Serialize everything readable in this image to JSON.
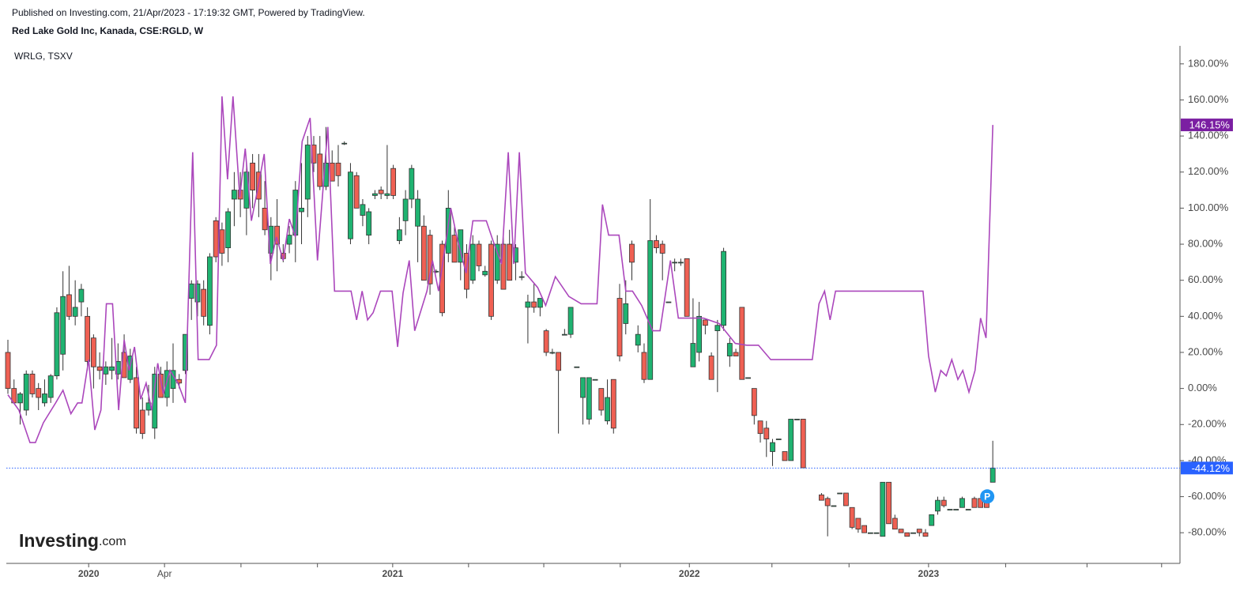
{
  "chart_data": {
    "type": "candlestick",
    "published": "Published on Investing.com, 21/Apr/2023 - 17:19:32 GMT, Powered by TradingView.",
    "title": "Red Lake Gold Inc, Kanada, CSE:RGLD, W",
    "branding": {
      "main": "Investing",
      "suffix": ".com"
    },
    "annotation": "P",
    "ylim": [
      -97,
      190
    ],
    "xlim": [
      -0.26,
      191.6
    ],
    "yticks": [
      {
        "value": -80,
        "label": "-80.00%"
      },
      {
        "value": -60,
        "label": "-60.00%"
      },
      {
        "value": -40,
        "label": "-40.00%"
      },
      {
        "value": -20,
        "label": "-20.00%"
      },
      {
        "value": 0,
        "label": "0.00%"
      },
      {
        "value": 20,
        "label": "20.00%"
      },
      {
        "value": 40,
        "label": "40.00%"
      },
      {
        "value": 60,
        "label": "60.00%"
      },
      {
        "value": 80,
        "label": "80.00%"
      },
      {
        "value": 100,
        "label": "100.00%"
      },
      {
        "value": 120,
        "label": "120.00%"
      },
      {
        "value": 140,
        "label": "140.00%"
      },
      {
        "value": 160,
        "label": "160.00%"
      },
      {
        "value": 180,
        "label": "180.00%"
      }
    ],
    "xticks": [
      {
        "value": 13.2,
        "label": "2020"
      },
      {
        "value": 25.6,
        "label": "Apr"
      },
      {
        "value": 38.1,
        "label": null
      },
      {
        "value": 50.6,
        "label": null
      },
      {
        "value": 62.9,
        "label": "2021"
      },
      {
        "value": 75.3,
        "label": null
      },
      {
        "value": 87.6,
        "label": null
      },
      {
        "value": 100.1,
        "label": null
      },
      {
        "value": 111.4,
        "label": "2022"
      },
      {
        "value": 124.9,
        "label": null
      },
      {
        "value": 137.5,
        "label": null
      },
      {
        "value": 150.5,
        "label": "2023"
      },
      {
        "value": 163.1,
        "label": null
      },
      {
        "value": 176.4,
        "label": null
      },
      {
        "value": 188.6,
        "label": null
      }
    ],
    "price_marker": {
      "value": -44.12,
      "label": "-44.12%",
      "color": "#2962ff"
    },
    "compare_marker": {
      "value": 146.15,
      "label": "146.15%",
      "color": "#7b1fa2"
    },
    "series": [
      {
        "type": "candlestick",
        "up_color": "#1fb371",
        "down_color": "#ef6053",
        "x": [
          0,
          1,
          2,
          3,
          4,
          5,
          6,
          7,
          8,
          9,
          10,
          11,
          12,
          13,
          14,
          15,
          16,
          17,
          18,
          19,
          20,
          21,
          22,
          23,
          24,
          25,
          26,
          27,
          28,
          29,
          30,
          31,
          32,
          33,
          34,
          35,
          36,
          37,
          38,
          39,
          40,
          41,
          42,
          43,
          44,
          45,
          46,
          47,
          48,
          49,
          50,
          51,
          52,
          53,
          54,
          55,
          56,
          57,
          58,
          59,
          60,
          61,
          62,
          63,
          64,
          65,
          66,
          67,
          68,
          69,
          70,
          71,
          72,
          73,
          74,
          75,
          76,
          77,
          78,
          79,
          80,
          81,
          82,
          83,
          84,
          85,
          86,
          87,
          88,
          89,
          90,
          91,
          92,
          93,
          94,
          95,
          96,
          97,
          98,
          99,
          100,
          101,
          102,
          103,
          104,
          105,
          106,
          107,
          108,
          109,
          110,
          111,
          112,
          113,
          114,
          115,
          116,
          117,
          118,
          119,
          120,
          121,
          122,
          123,
          124,
          125,
          126,
          127,
          128,
          129,
          130,
          133,
          134,
          135,
          136,
          137,
          138,
          139,
          140,
          141,
          142,
          143,
          144,
          145,
          146,
          147,
          148,
          149,
          150,
          151,
          152,
          153,
          154,
          155,
          156,
          157,
          158,
          159,
          160,
          161
        ],
        "open": [
          20,
          0,
          -8,
          -12,
          8,
          0,
          -8,
          -5,
          7,
          19,
          52,
          40,
          48,
          40,
          28,
          12,
          8,
          10,
          8,
          20,
          5,
          6,
          -12,
          -12,
          -22,
          8,
          -5,
          0,
          5,
          10,
          50,
          48,
          55,
          35,
          93,
          88,
          78,
          105,
          110,
          100,
          125,
          120,
          100,
          75,
          90,
          75,
          80,
          85,
          98,
          105,
          135,
          130,
          112,
          125,
          125,
          136,
          83,
          118,
          96,
          85,
          107,
          110,
          107,
          122,
          82,
          93,
          105,
          90,
          90,
          85,
          65,
          80,
          75,
          85,
          70,
          75,
          60,
          80,
          63,
          80,
          60,
          80,
          80,
          70,
          62,
          45,
          48,
          45,
          32,
          20,
          20,
          30,
          30,
          12,
          -5,
          -17,
          5,
          0,
          -18,
          5,
          50,
          36,
          80,
          24,
          20,
          5,
          82,
          80,
          48,
          70,
          70,
          72,
          12,
          20,
          38,
          18,
          32,
          35,
          18,
          20,
          45,
          6,
          0,
          -18,
          -22,
          -35,
          -28,
          -35,
          -40,
          -17,
          -17,
          -59,
          -61,
          -65,
          -58,
          -58,
          -66,
          -72,
          -76,
          -80,
          -80,
          -82,
          -52,
          -72,
          -78,
          -80,
          -80,
          -78,
          -80,
          -76,
          -68,
          -62,
          -67,
          -67,
          -66,
          -67,
          -61,
          -61,
          -61,
          -52
        ],
        "high": [
          27,
          5,
          -2,
          10,
          10,
          3,
          5,
          8,
          45,
          65,
          68,
          60,
          58,
          45,
          30,
          20,
          15,
          28,
          25,
          30,
          22,
          12,
          -5,
          2,
          12,
          12,
          15,
          25,
          8,
          30,
          60,
          60,
          60,
          75,
          95,
          92,
          100,
          120,
          120,
          125,
          130,
          130,
          115,
          95,
          105,
          80,
          90,
          115,
          125,
          140,
          140,
          140,
          145,
          132,
          135,
          137,
          125,
          120,
          105,
          100,
          110,
          112,
          135,
          124,
          95,
          110,
          124,
          110,
          96,
          88,
          66,
          82,
          110,
          90,
          88,
          80,
          85,
          82,
          68,
          82,
          85,
          85,
          88,
          80,
          65,
          52,
          58,
          50,
          33,
          22,
          20,
          33,
          45,
          12,
          6,
          6,
          5,
          0,
          5,
          5,
          58,
          60,
          82,
          35,
          25,
          105,
          85,
          82,
          48,
          72,
          72,
          72,
          50,
          48,
          38,
          20,
          38,
          78,
          28,
          22,
          45,
          6,
          0,
          -18,
          -18,
          -28,
          -28,
          -35,
          -17,
          -17,
          -17,
          -58,
          -60,
          -65,
          -58,
          -58,
          -66,
          -72,
          -76,
          -80,
          -80,
          -52,
          -52,
          -70,
          -78,
          -80,
          -80,
          -78,
          -78,
          -70,
          -60,
          -60,
          -67,
          -67,
          -60,
          -67,
          -60,
          -61,
          -61,
          -29
        ],
        "low": [
          -3,
          -8,
          -20,
          -15,
          -5,
          -12,
          -10,
          -8,
          5,
          10,
          38,
          35,
          40,
          10,
          0,
          5,
          2,
          5,
          5,
          6,
          3,
          -25,
          -28,
          -15,
          -28,
          -5,
          -10,
          -8,
          0,
          8,
          38,
          40,
          35,
          30,
          70,
          68,
          70,
          90,
          95,
          85,
          100,
          95,
          85,
          60,
          65,
          70,
          75,
          70,
          80,
          95,
          120,
          110,
          110,
          115,
          112,
          135,
          80,
          100,
          90,
          80,
          105,
          105,
          105,
          105,
          80,
          85,
          100,
          70,
          60,
          52,
          64,
          40,
          70,
          70,
          60,
          50,
          58,
          65,
          62,
          38,
          58,
          55,
          60,
          60,
          60,
          25,
          42,
          40,
          18,
          19,
          -25,
          30,
          28,
          12,
          -20,
          -20,
          5,
          -15,
          -20,
          -25,
          15,
          30,
          60,
          20,
          3,
          5,
          75,
          60,
          48,
          65,
          68,
          40,
          12,
          15,
          30,
          5,
          -2,
          32,
          12,
          18,
          5,
          6,
          -20,
          -30,
          -38,
          -43,
          -28,
          -40,
          -40,
          -17,
          -44,
          -62,
          -82,
          -65,
          -58,
          -65,
          -78,
          -80,
          -80,
          -80,
          -80,
          -82,
          -75,
          -78,
          -80,
          -82,
          -80,
          -82,
          -82,
          -76,
          -70,
          -66,
          -67,
          -67,
          -66,
          -67,
          -66,
          -66,
          -66,
          -52
        ],
        "close": [
          0,
          -8,
          -3,
          8,
          -3,
          -5,
          -3,
          7,
          42,
          51,
          40,
          45,
          55,
          15,
          12,
          10,
          12,
          12,
          15,
          6,
          18,
          -22,
          -25,
          -8,
          8,
          -5,
          10,
          10,
          3,
          30,
          58,
          58,
          40,
          73,
          73,
          75,
          98,
          110,
          105,
          120,
          110,
          105,
          88,
          90,
          80,
          72,
          85,
          110,
          100,
          135,
          125,
          112,
          125,
          115,
          118,
          136,
          120,
          100,
          102,
          98,
          108,
          108,
          108,
          107,
          88,
          105,
          122,
          105,
          60,
          58,
          65,
          42,
          100,
          70,
          88,
          55,
          80,
          68,
          65,
          40,
          80,
          55,
          60,
          78,
          62,
          48,
          45,
          50,
          20,
          20,
          10,
          30,
          45,
          12,
          6,
          6,
          5,
          -12,
          -5,
          -22,
          18,
          47,
          70,
          30,
          5,
          82,
          78,
          75,
          48,
          70,
          70,
          40,
          25,
          40,
          35,
          5,
          35,
          76,
          25,
          18,
          5,
          6,
          -15,
          -25,
          -28,
          -30,
          -28,
          -40,
          -17,
          -17,
          -44,
          -62,
          -65,
          -65,
          -58,
          -65,
          -77,
          -78,
          -80,
          -80,
          -80,
          -52,
          -75,
          -78,
          -80,
          -82,
          -80,
          -80,
          -82,
          -70,
          -62,
          -65,
          -67,
          -67,
          -61,
          -67,
          -66,
          -66,
          -66,
          -44.12
        ]
      },
      {
        "type": "line",
        "name": "WRLG, TSXV",
        "color": "#ab47bc",
        "x": [
          0,
          1.8,
          3.6,
          4.5,
          5.8,
          7.8,
          9,
          10.3,
          11.4,
          12.1,
          13.2,
          14.2,
          15.2,
          16.1,
          17.1,
          18.1,
          19,
          19.8,
          20.7,
          21.7,
          22.6,
          23.5,
          24.5,
          25.4,
          26.5,
          27.8,
          29,
          30.2,
          31.1,
          32.9,
          34.1,
          35,
          35.9,
          36.8,
          37.9,
          38.8,
          39.8,
          40.8,
          41.9,
          42.9,
          43.9,
          45,
          46,
          47,
          48.1,
          49.4,
          50.6,
          52.3,
          53.4,
          56.1,
          57,
          57.9,
          58.8,
          59.7,
          60.9,
          62.8,
          63.7,
          64.6,
          65.6,
          66.5,
          68.5,
          69.4,
          70.4,
          72.4,
          73.4,
          74.9,
          76,
          78.2,
          79.5,
          80.7,
          81.8,
          82.7,
          83.6,
          84.6,
          86.6,
          87.9,
          89.5,
          91.7,
          93.7,
          96.3,
          97.2,
          98.2,
          99.9,
          101,
          102.1,
          103.6,
          105.4,
          106.6,
          108.3,
          109.6,
          113.7,
          116.3,
          118.9,
          120.8,
          122.7,
          124.7,
          131.5,
          132.6,
          133.5,
          134.4,
          135.3,
          149.6,
          150.5,
          151.6,
          152.5,
          153.4,
          154.3,
          155.3,
          156.1,
          157.1,
          158.1,
          159,
          159.9,
          161
        ],
        "values": [
          -3.5,
          -12,
          -30,
          -30,
          -19,
          -8,
          -1,
          -14,
          -8,
          -8,
          16,
          -23,
          -12,
          47,
          47,
          -12,
          27,
          10,
          23,
          -6,
          3,
          -12,
          14,
          -3,
          10,
          3,
          -8,
          131,
          16,
          16,
          24,
          162,
          116,
          162,
          106,
          133,
          93,
          110,
          130,
          69,
          84,
          71,
          94,
          84,
          137,
          150,
          71,
          145,
          54,
          54,
          38,
          54,
          38,
          42,
          54,
          54,
          23,
          53,
          71,
          32,
          54,
          71,
          54,
          100,
          84,
          64,
          93,
          93,
          80,
          69,
          131,
          69,
          131,
          64,
          56,
          46,
          62,
          51,
          47,
          47,
          102,
          85,
          85,
          54,
          54,
          46,
          32,
          32,
          71,
          39,
          39,
          36,
          25,
          24,
          24,
          16,
          16,
          47,
          54,
          38,
          54,
          54,
          18,
          -2,
          10,
          7,
          16,
          5,
          10,
          -2,
          10,
          39,
          28,
          146.15
        ]
      }
    ]
  }
}
